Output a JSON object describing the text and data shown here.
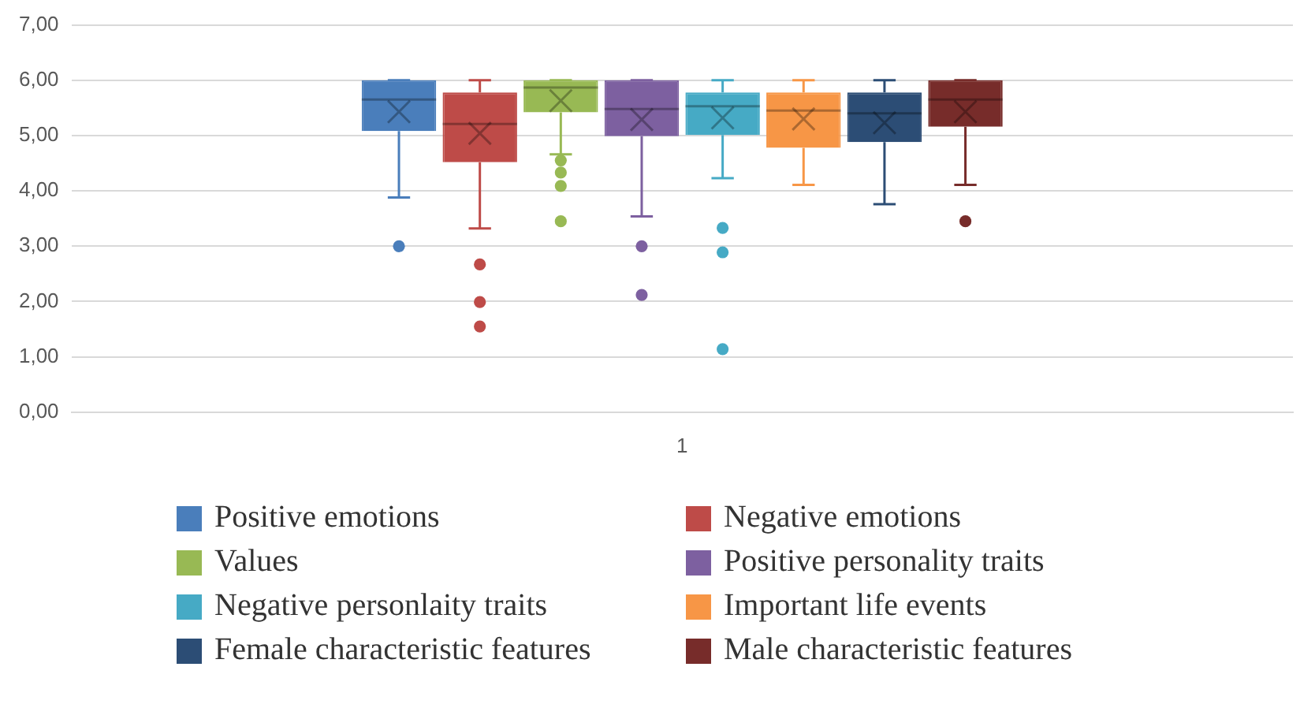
{
  "chart_data": {
    "type": "box",
    "categories": [
      "1"
    ],
    "ylim": [
      0,
      7
    ],
    "yticks": [
      {
        "value": 0,
        "label": "0,00"
      },
      {
        "value": 1,
        "label": "1,00"
      },
      {
        "value": 2,
        "label": "2,00"
      },
      {
        "value": 3,
        "label": "3,00"
      },
      {
        "value": 4,
        "label": "4,00"
      },
      {
        "value": 5,
        "label": "5,00"
      },
      {
        "value": 6,
        "label": "6,00"
      },
      {
        "value": 7,
        "label": "7,00"
      }
    ],
    "grid": "y",
    "legend": "bottom",
    "series": [
      {
        "name": "Positive emotions",
        "color": "#4a7ebb",
        "boxes": [
          {
            "low": 3.88,
            "q1": 5.08,
            "median": 5.65,
            "q3": 6.0,
            "high": 6.0,
            "mean": 5.43,
            "outliers": [
              3.0
            ]
          }
        ]
      },
      {
        "name": "Negative emotions",
        "color": "#be4b48",
        "boxes": [
          {
            "low": 3.32,
            "q1": 4.52,
            "median": 5.21,
            "q3": 5.78,
            "high": 6.0,
            "mean": 5.04,
            "outliers": [
              2.67,
              1.99,
              1.55
            ]
          }
        ]
      },
      {
        "name": "Values",
        "color": "#98b954",
        "boxes": [
          {
            "low": 4.66,
            "q1": 5.42,
            "median": 5.87,
            "q3": 6.0,
            "high": 6.0,
            "mean": 5.63,
            "outliers": [
              4.55,
              4.33,
              4.09,
              3.45
            ]
          }
        ]
      },
      {
        "name": "Positive personality traits",
        "color": "#7d60a0",
        "boxes": [
          {
            "low": 3.54,
            "q1": 4.99,
            "median": 5.48,
            "q3": 6.0,
            "high": 6.0,
            "mean": 5.29,
            "outliers": [
              3.0,
              2.12
            ]
          }
        ]
      },
      {
        "name": "Negative personlaity traits",
        "color": "#46aac5",
        "boxes": [
          {
            "low": 4.23,
            "q1": 5.01,
            "median": 5.53,
            "q3": 5.78,
            "high": 6.0,
            "mean": 5.32,
            "outliers": [
              3.33,
              2.89,
              1.14
            ]
          }
        ]
      },
      {
        "name": "Important life events",
        "color": "#f79646",
        "boxes": [
          {
            "low": 4.11,
            "q1": 4.78,
            "median": 5.45,
            "q3": 5.78,
            "high": 6.0,
            "mean": 5.3
          }
        ]
      },
      {
        "name": "Female characteristic features",
        "color": "#2c4d75",
        "boxes": [
          {
            "low": 3.76,
            "q1": 4.88,
            "median": 5.4,
            "q3": 5.78,
            "high": 6.0,
            "mean": 5.23
          }
        ]
      },
      {
        "name": "Male characteristic features",
        "color": "#772c2a",
        "boxes": [
          {
            "low": 4.11,
            "q1": 5.16,
            "median": 5.65,
            "q3": 6.0,
            "high": 6.0,
            "mean": 5.43,
            "outliers": [
              3.45
            ]
          }
        ]
      }
    ]
  }
}
